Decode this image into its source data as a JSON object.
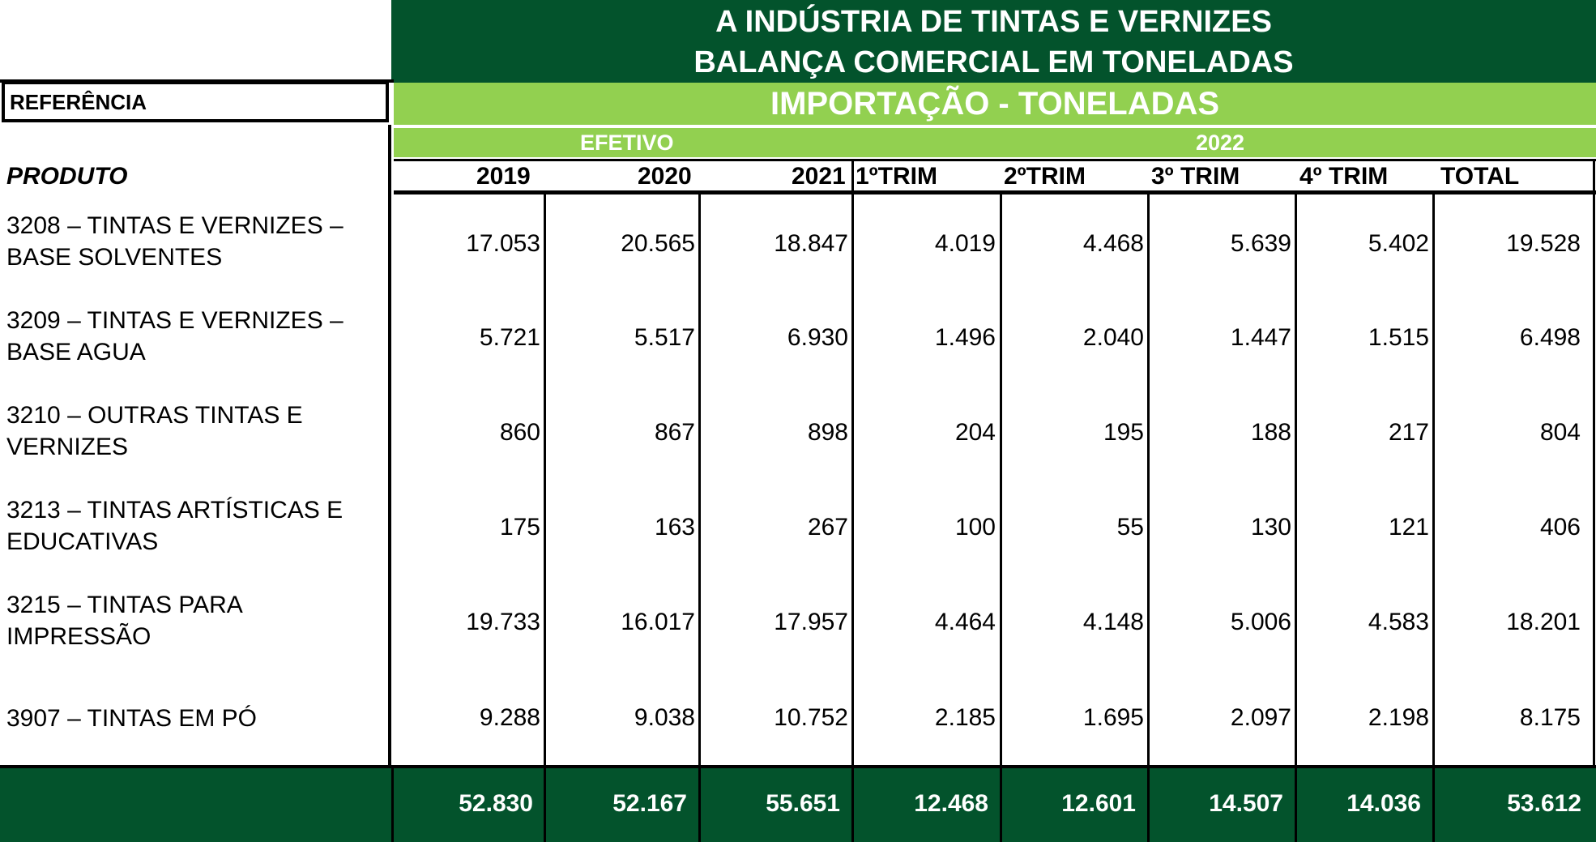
{
  "title": {
    "line1": "A INDÚSTRIA DE TINTAS E VERNIZES",
    "line2": "BALANÇA COMERCIAL  EM TONELADAS"
  },
  "reference_label": "REFERÊNCIA",
  "section_label": "IMPORTAÇÃO - TONELADAS",
  "period": {
    "efetivo": "EFETIVO",
    "year": "2022"
  },
  "product_header": "PRODUTO",
  "columns": [
    "2019",
    "2020",
    "2021",
    "1ºTRIM",
    "2ºTRIM",
    "3º TRIM",
    "4º TRIM",
    "TOTAL"
  ],
  "rows": [
    {
      "product_line1": "3208 – TINTAS E VERNIZES –",
      "product_line2": "BASE SOLVENTES",
      "values": [
        "17.053",
        "20.565",
        "18.847",
        "4.019",
        "4.468",
        "5.639",
        "5.402",
        "19.528"
      ]
    },
    {
      "product_line1": "3209 – TINTAS E VERNIZES –",
      "product_line2": "BASE AGUA",
      "values": [
        "5.721",
        "5.517",
        "6.930",
        "1.496",
        "2.040",
        "1.447",
        "1.515",
        "6.498"
      ]
    },
    {
      "product_line1": "3210 – OUTRAS TINTAS E",
      "product_line2": "VERNIZES",
      "values": [
        "860",
        "867",
        "898",
        "204",
        "195",
        "188",
        "217",
        "804"
      ]
    },
    {
      "product_line1": "3213 – TINTAS ARTÍSTICAS E",
      "product_line2": "EDUCATIVAS",
      "values": [
        "175",
        "163",
        "267",
        "100",
        "55",
        "130",
        "121",
        "406"
      ]
    },
    {
      "product_line1": "3215 – TINTAS PARA",
      "product_line2": "IMPRESSÃO",
      "values": [
        "19.733",
        "16.017",
        "17.957",
        "4.464",
        "4.148",
        "5.006",
        "4.583",
        "18.201"
      ]
    },
    {
      "product_line1": "3907 – TINTAS EM PÓ",
      "product_line2": "",
      "values": [
        "9.288",
        "9.038",
        "10.752",
        "2.185",
        "1.695",
        "2.097",
        "2.198",
        "8.175"
      ]
    }
  ],
  "totals": [
    "52.830",
    "52.167",
    "55.651",
    "12.468",
    "12.601",
    "14.507",
    "14.036",
    "53.612"
  ],
  "colors": {
    "dark_green": "#03532c",
    "light_green": "#92d050"
  }
}
